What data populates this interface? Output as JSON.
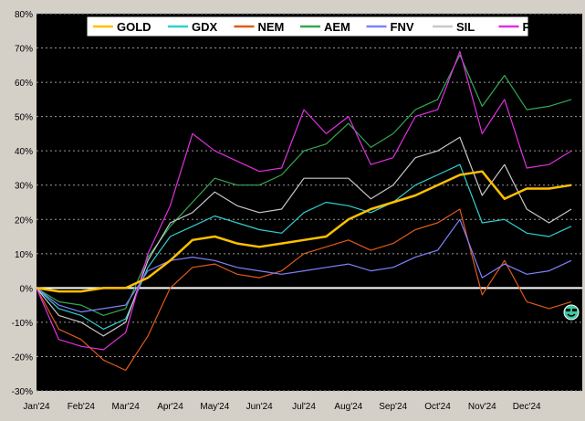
{
  "chart_data": {
    "type": "line",
    "title": "",
    "xlabel": "",
    "ylabel": "",
    "ylim": [
      -30,
      80
    ],
    "y_unit": "%",
    "grid": true,
    "background": "#000000",
    "legend_position": "top-center",
    "y_ticks": [
      -30,
      -20,
      -10,
      0,
      10,
      20,
      30,
      40,
      50,
      60,
      70,
      80
    ],
    "y_tick_labels": [
      "-30%",
      "-20%",
      "-10%",
      "0%",
      "10%",
      "20%",
      "30%",
      "40%",
      "50%",
      "60%",
      "70%",
      "80%"
    ],
    "x_tick_labels": [
      "Jan'24",
      "Feb'24",
      "Mar'24",
      "Apr'24",
      "May'24",
      "Jun'24",
      "Jul'24",
      "Aug'24",
      "Sep'24",
      "Oct'24",
      "Nov'24",
      "Dec'24"
    ],
    "x": [
      "Jan'24",
      "Jan-mid",
      "Feb'24",
      "Feb-mid",
      "Mar'24",
      "Mar-mid",
      "Apr'24",
      "Apr-mid",
      "May'24",
      "May-mid",
      "Jun'24",
      "Jun-mid",
      "Jul'24",
      "Jul-mid",
      "Aug'24",
      "Aug-mid",
      "Sep'24",
      "Sep-mid",
      "Oct'24",
      "Oct-mid",
      "Nov'24",
      "Nov-mid",
      "Dec'24",
      "Dec-mid",
      "Dec-end"
    ],
    "series": [
      {
        "name": "GOLD",
        "color": "#ffc000",
        "values": [
          0,
          -1,
          -1,
          0,
          0,
          3,
          8,
          14,
          15,
          13,
          12,
          13,
          14,
          15,
          20,
          23,
          25,
          27,
          30,
          33,
          34,
          26,
          29,
          29,
          30
        ]
      },
      {
        "name": "GDX",
        "color": "#30d0d0",
        "values": [
          0,
          -6,
          -8,
          -12,
          -9,
          6,
          15,
          18,
          21,
          19,
          17,
          16,
          22,
          25,
          24,
          22,
          25,
          30,
          33,
          36,
          19,
          20,
          16,
          15,
          18
        ]
      },
      {
        "name": "NEM",
        "color": "#e05a1a",
        "values": [
          0,
          -12,
          -15,
          -21,
          -24,
          -14,
          0,
          6,
          7,
          4,
          3,
          5,
          10,
          12,
          14,
          11,
          13,
          17,
          19,
          23,
          -2,
          8,
          -4,
          -6,
          -4
        ]
      },
      {
        "name": "AEM",
        "color": "#33a852",
        "values": [
          0,
          -4,
          -5,
          -8,
          -6,
          9,
          18,
          25,
          32,
          30,
          30,
          33,
          40,
          42,
          48,
          41,
          45,
          52,
          55,
          68,
          53,
          62,
          52,
          53,
          55
        ]
      },
      {
        "name": "FNV",
        "color": "#8080ff",
        "values": [
          0,
          -5,
          -7,
          -6,
          -5,
          5,
          8,
          9,
          8,
          6,
          5,
          4,
          5,
          6,
          7,
          5,
          6,
          9,
          11,
          20,
          3,
          7,
          4,
          5,
          8
        ]
      },
      {
        "name": "SIL",
        "color": "#c8c8c8",
        "values": [
          0,
          -8,
          -10,
          -14,
          -10,
          8,
          19,
          22,
          28,
          24,
          22,
          23,
          32,
          32,
          32,
          26,
          30,
          38,
          40,
          44,
          27,
          36,
          23,
          19,
          23
        ]
      },
      {
        "name": "PAAS",
        "color": "#e030e0",
        "values": [
          0,
          -15,
          -17,
          -18,
          -13,
          10,
          24,
          45,
          40,
          37,
          34,
          35,
          52,
          45,
          50,
          36,
          38,
          50,
          52,
          69,
          45,
          55,
          35,
          36,
          40
        ]
      }
    ]
  }
}
